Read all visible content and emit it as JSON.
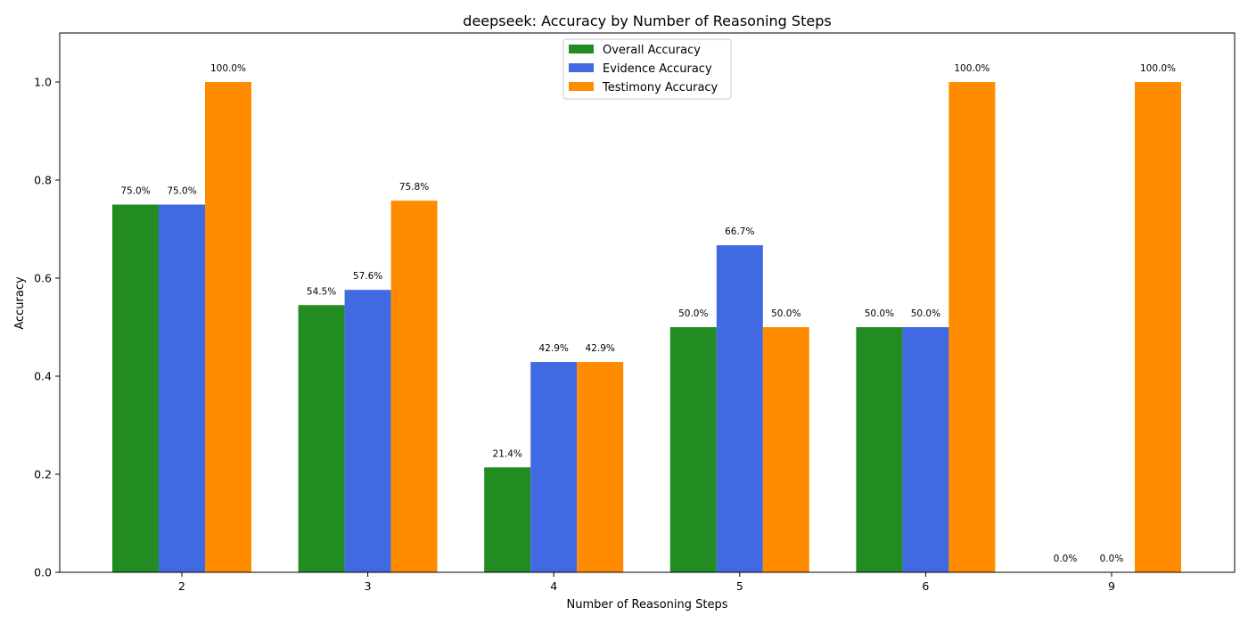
{
  "chart_data": {
    "type": "bar",
    "title": "deepseek: Accuracy by Number of Reasoning Steps",
    "xlabel": "Number of Reasoning Steps",
    "ylabel": "Accuracy",
    "ylim": [
      0,
      1.1
    ],
    "yticks": [
      0.0,
      0.2,
      0.4,
      0.6,
      0.8,
      1.0
    ],
    "ytick_labels": [
      "0.0",
      "0.2",
      "0.4",
      "0.6",
      "0.8",
      "1.0"
    ],
    "categories": [
      "2",
      "3",
      "4",
      "5",
      "6",
      "9"
    ],
    "legend_position": "top-center",
    "grid": false,
    "series": [
      {
        "name": "Overall Accuracy",
        "color": "#228B22",
        "values": [
          0.75,
          0.545,
          0.214,
          0.5,
          0.5,
          0.0
        ],
        "labels": [
          "75.0%",
          "54.5%",
          "21.4%",
          "50.0%",
          "50.0%",
          "0.0%"
        ]
      },
      {
        "name": "Evidence Accuracy",
        "color": "#4169E1",
        "values": [
          0.75,
          0.576,
          0.429,
          0.667,
          0.5,
          0.0
        ],
        "labels": [
          "75.0%",
          "57.6%",
          "42.9%",
          "66.7%",
          "50.0%",
          "0.0%"
        ]
      },
      {
        "name": "Testimony Accuracy",
        "color": "#FF8C00",
        "values": [
          1.0,
          0.758,
          0.429,
          0.5,
          1.0,
          1.0
        ],
        "labels": [
          "100.0%",
          "75.8%",
          "42.9%",
          "50.0%",
          "100.0%",
          "100.0%"
        ]
      }
    ]
  }
}
